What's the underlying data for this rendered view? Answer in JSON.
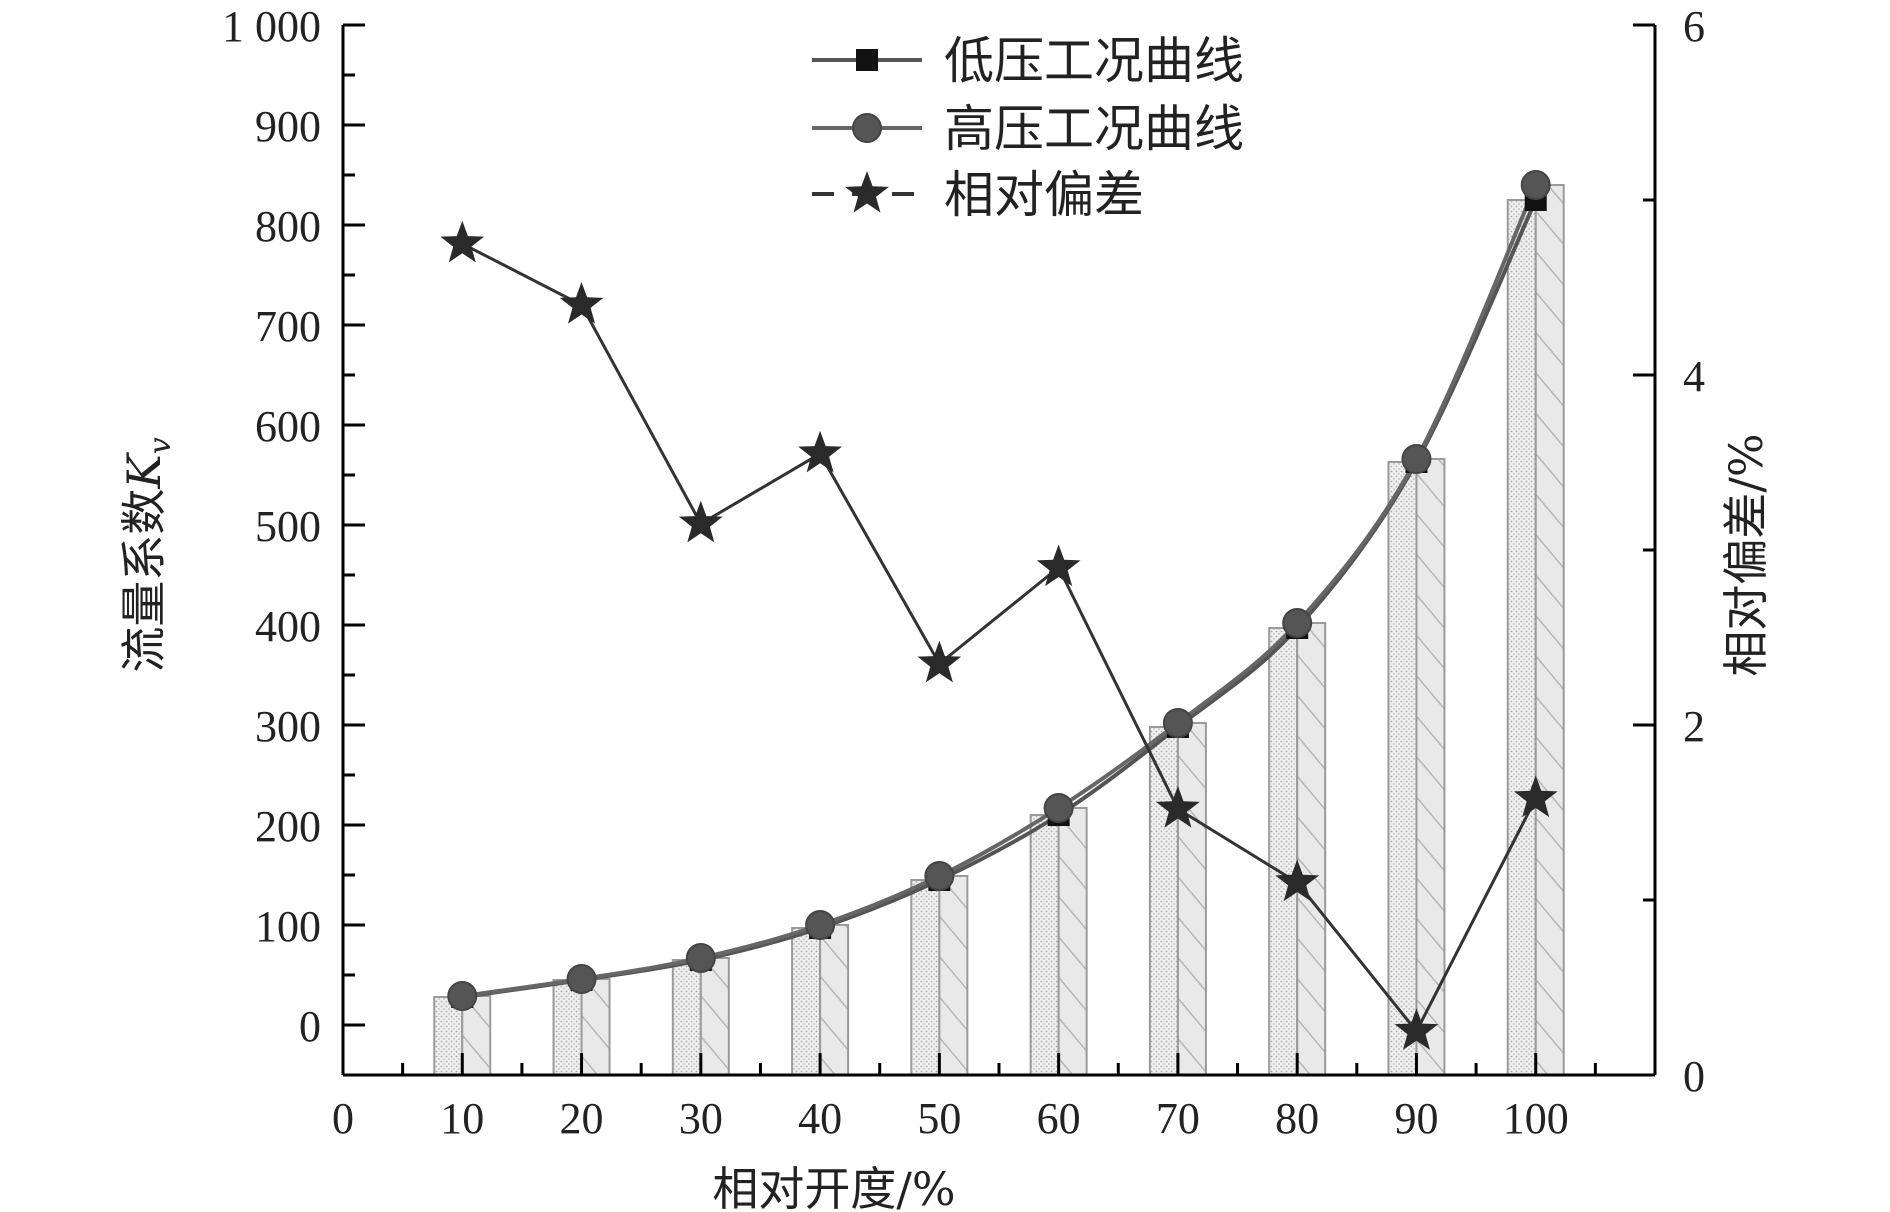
{
  "chart_data": {
    "type": "bar",
    "x": [
      10,
      20,
      30,
      40,
      50,
      60,
      70,
      80,
      90,
      100
    ],
    "xlabel": "相对开度/%",
    "ylabel_left_main": "流量系数",
    "ylabel_left_var": "K",
    "ylabel_left_sub": "v",
    "ylabel_right": "相对偏差/%",
    "xlim": [
      0,
      110
    ],
    "ylim_left": [
      -50,
      1000
    ],
    "ylim_right": [
      0,
      6
    ],
    "xticks": [
      0,
      10,
      20,
      30,
      40,
      50,
      60,
      70,
      80,
      90,
      100
    ],
    "xtick_labels": [
      "0",
      "10",
      "20",
      "30",
      "40",
      "50",
      "60",
      "70",
      "80",
      "90",
      "100"
    ],
    "yticks_left": [
      0,
      100,
      200,
      300,
      400,
      500,
      600,
      700,
      800,
      900,
      1000
    ],
    "ytick_labels_left": [
      "0",
      "100",
      "200",
      "300",
      "400",
      "500",
      "600",
      "700",
      "800",
      "900",
      "1 000"
    ],
    "yticks_right": [
      0,
      2,
      4,
      6
    ],
    "ytick_labels_right": [
      "0",
      "2",
      "4",
      "6"
    ],
    "series": [
      {
        "name": "低压工况曲线",
        "axis": "left",
        "marker": "square",
        "color": "#555555",
        "values": [
          28,
          45,
          65,
          97,
          145,
          210,
          298,
          397,
          563,
          825
        ]
      },
      {
        "name": "高压工况曲线",
        "axis": "left",
        "marker": "circle",
        "color": "#666666",
        "values": [
          29,
          46,
          67,
          100,
          149,
          217,
          302,
          402,
          566,
          840
        ]
      },
      {
        "name": "相对偏差",
        "axis": "right",
        "marker": "star",
        "color": "#333333",
        "values": [
          4.75,
          4.4,
          3.15,
          3.55,
          2.35,
          2.9,
          1.52,
          1.1,
          0.25,
          1.58
        ]
      }
    ],
    "legend": {
      "position": "top-center"
    },
    "grid": false
  }
}
